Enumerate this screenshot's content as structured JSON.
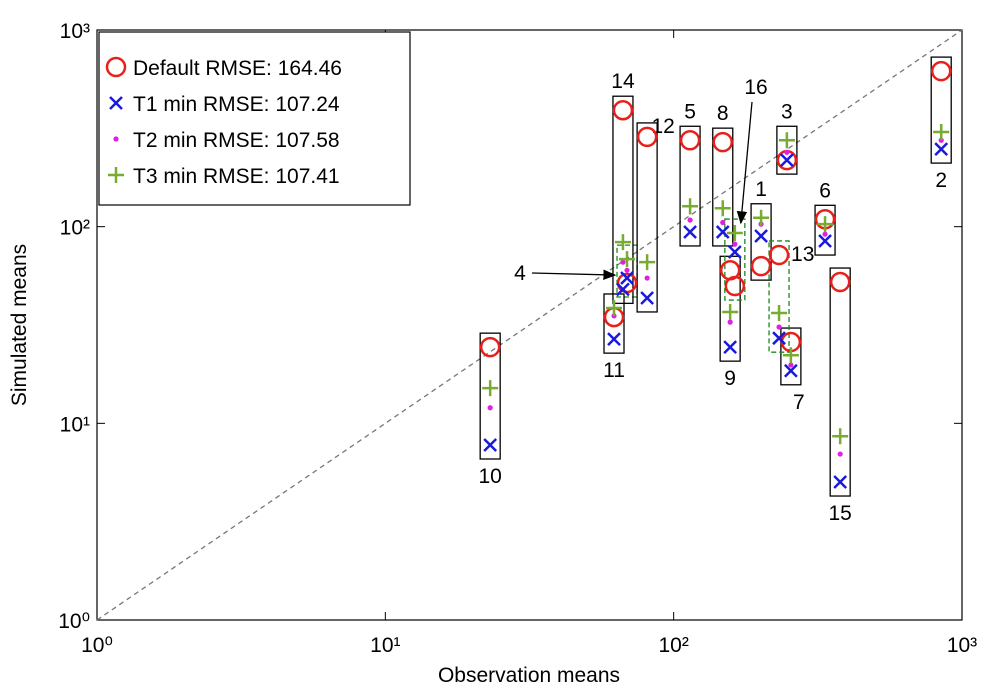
{
  "chart_data": {
    "type": "scatter",
    "xscale": "log",
    "yscale": "log",
    "x_label": "Observation means",
    "y_label": "Simulated means",
    "xlim": [
      1,
      1000
    ],
    "ylim": [
      1,
      1000
    ],
    "xticks": [
      {
        "value": 1,
        "label": "10⁰"
      },
      {
        "value": 10,
        "label": "10¹"
      },
      {
        "value": 100,
        "label": "10²"
      },
      {
        "value": 1000,
        "label": "10³"
      }
    ],
    "yticks": [
      {
        "value": 1,
        "label": "10⁰"
      },
      {
        "value": 10,
        "label": "10¹"
      },
      {
        "value": 100,
        "label": "10²"
      },
      {
        "value": 1000,
        "label": "10³"
      }
    ],
    "legend": "upper left",
    "point_labels": [
      "1",
      "2",
      "3",
      "4",
      "5",
      "6",
      "7",
      "8",
      "9",
      "10",
      "11",
      "12",
      "13",
      "14",
      "15",
      "16"
    ],
    "box_dashed": [
      false,
      false,
      false,
      true,
      false,
      false,
      false,
      false,
      false,
      false,
      false,
      false,
      true,
      false,
      false,
      true
    ],
    "x": [
      201,
      847,
      247,
      68.9,
      114,
      335,
      255,
      148,
      157,
      23.1,
      62.1,
      80.9,
      232,
      66.7,
      378,
      163
    ],
    "series": [
      {
        "name": "Default RMSE: 164.46",
        "color": "#e8201c",
        "marker": "circle",
        "values": [
          63,
          618,
          218,
          51.7,
          275,
          109,
          25.9,
          269,
          60,
          24.4,
          34.7,
          286,
          71.8,
          391,
          52.3,
          49.9
        ]
      },
      {
        "name": "T1 min RMSE: 107.24",
        "color": "#1a1adf",
        "marker": "x",
        "values": [
          89.6,
          248,
          218,
          54.8,
          94,
          84.5,
          18.5,
          94,
          24.4,
          7.76,
          26.8,
          43.4,
          27.1,
          48,
          5.03,
          74.3
        ]
      },
      {
        "name": "T2 min RMSE: 107.58",
        "color": "#e020e0",
        "marker": "dot",
        "values": [
          103,
          275,
          239,
          60,
          108,
          91.6,
          19.8,
          105,
          32.7,
          12,
          35.2,
          54.8,
          30.9,
          66,
          6.98,
          81.5
        ]
      },
      {
        "name": "T3 min RMSE: 107.41",
        "color": "#77ac30",
        "marker": "plus",
        "values": [
          111,
          303,
          275,
          68.4,
          127,
          103,
          22.2,
          124,
          36.8,
          15.1,
          38.6,
          66,
          36.4,
          83.5,
          8.6,
          92.8
        ]
      }
    ]
  }
}
